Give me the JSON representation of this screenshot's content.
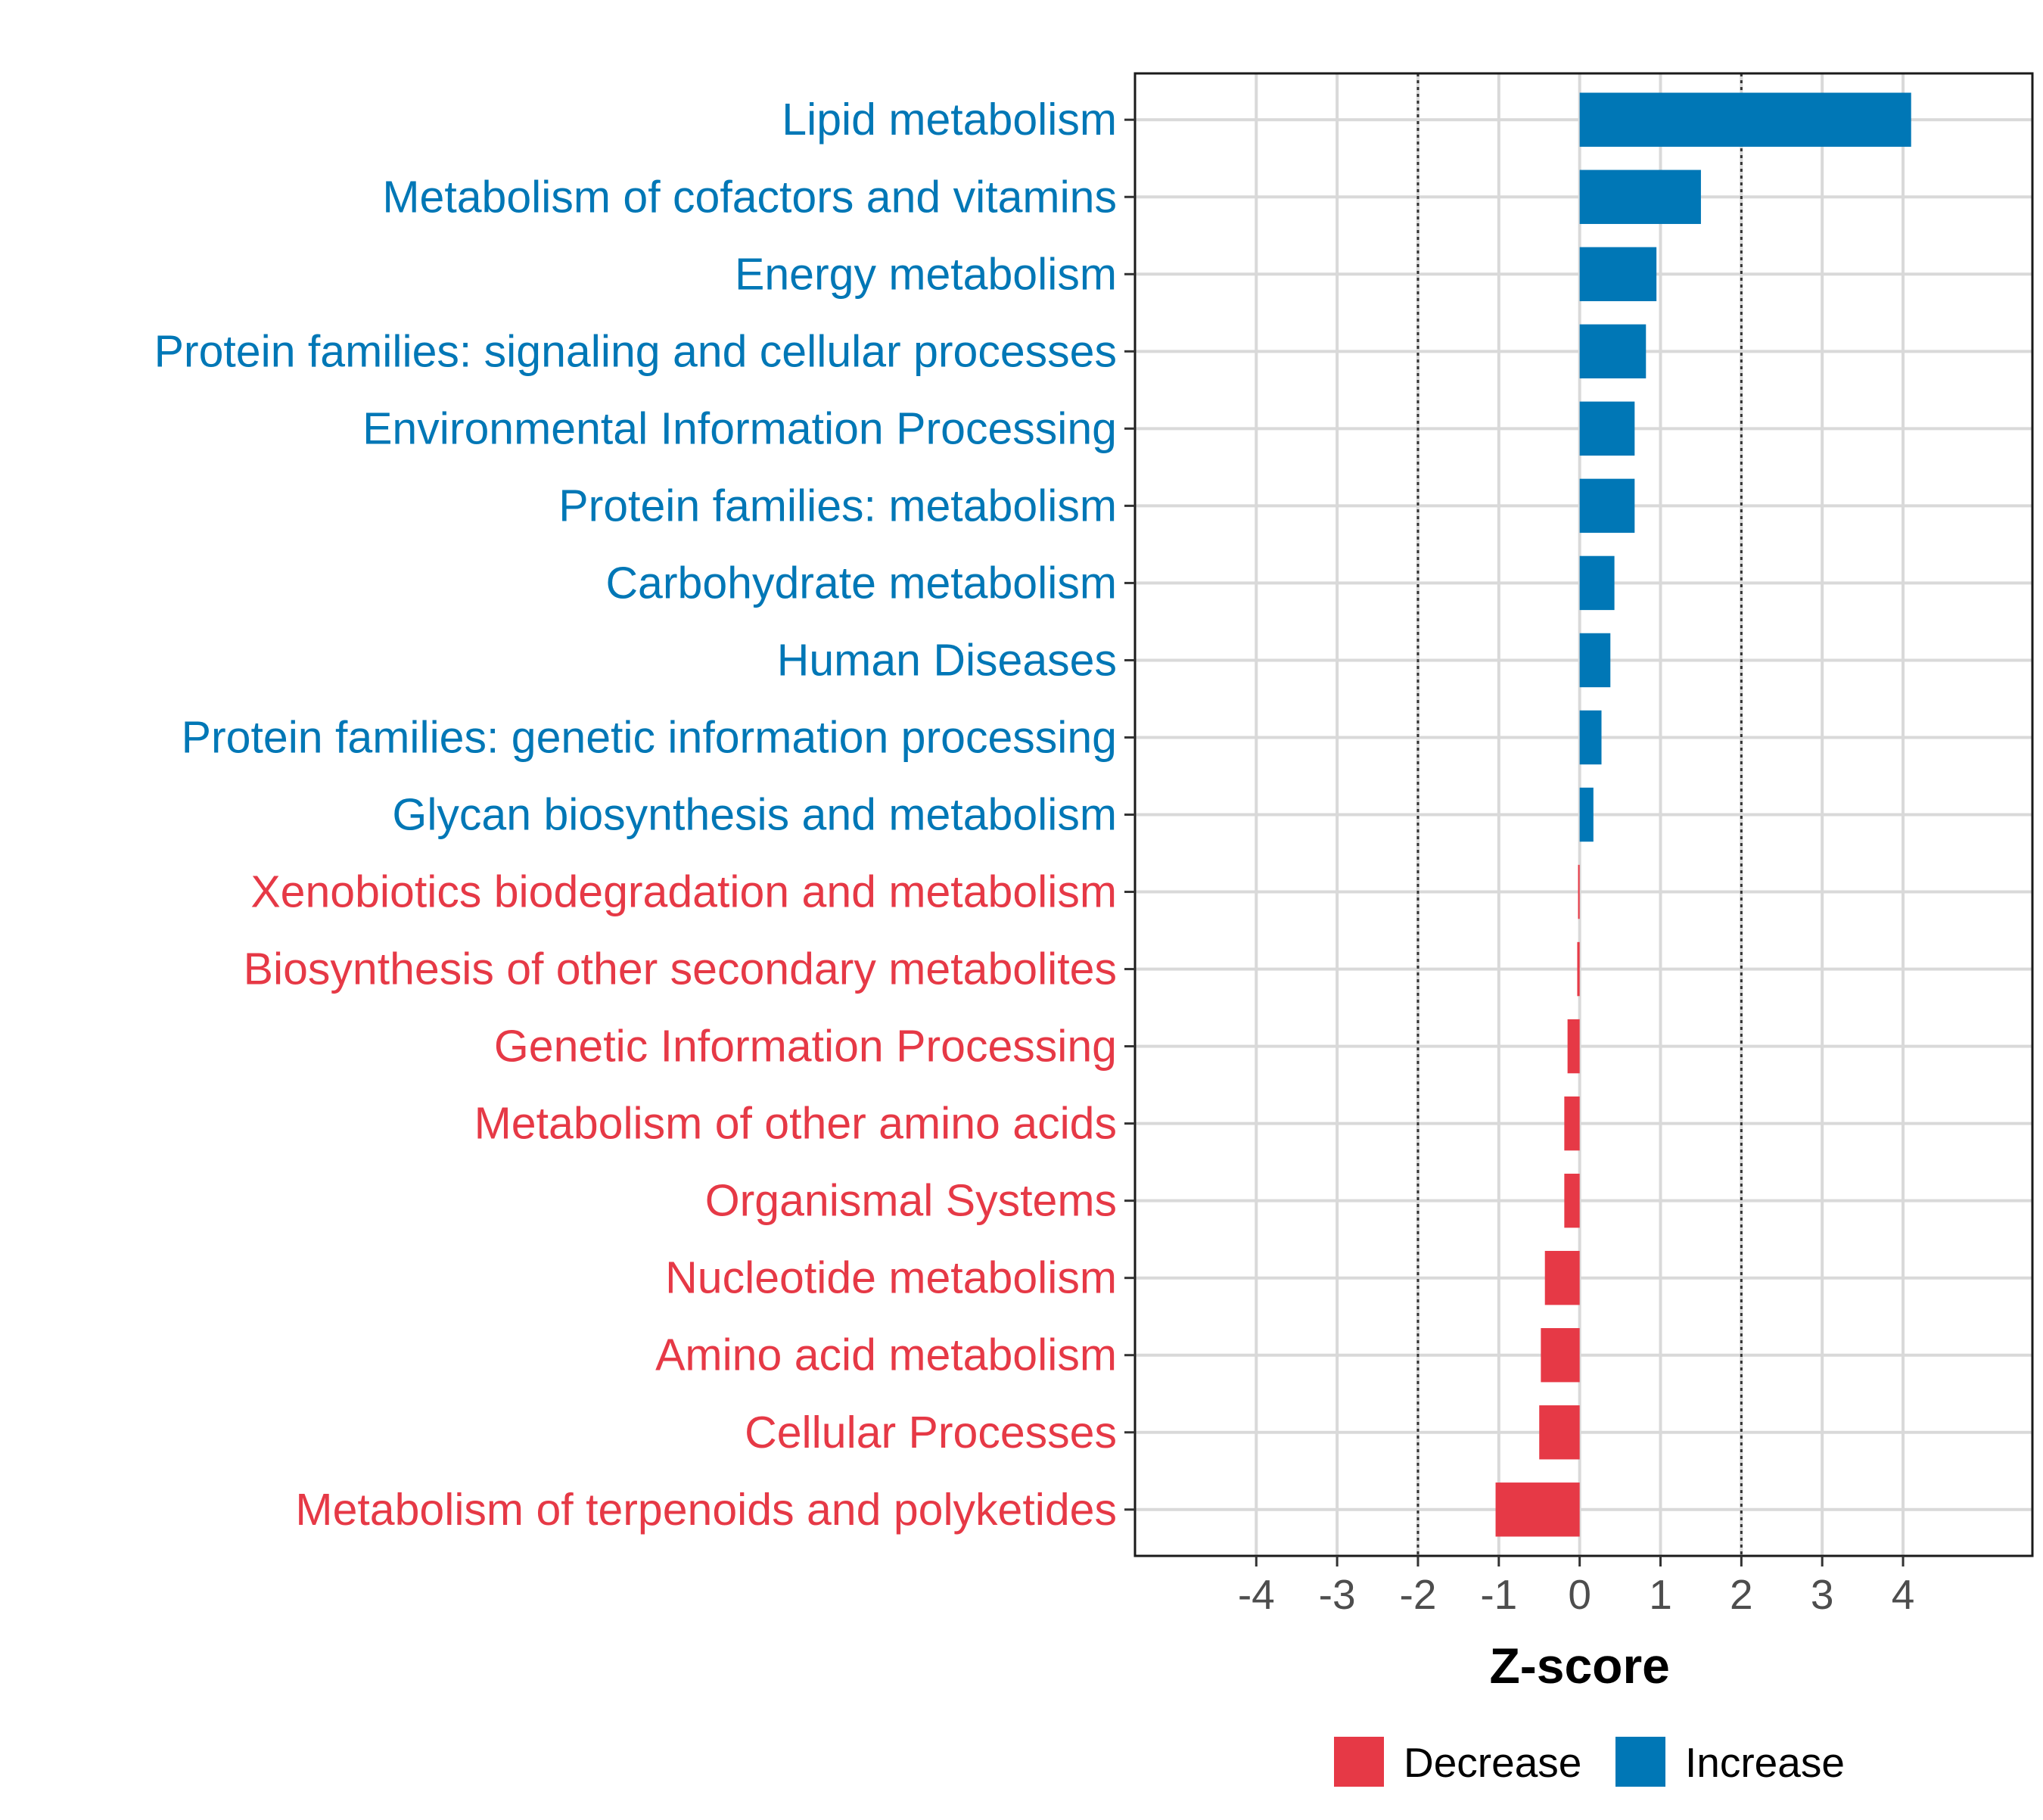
{
  "chart_data": {
    "type": "bar",
    "orientation": "horizontal",
    "title": "",
    "xlabel": "Z-score",
    "ylabel": "",
    "xlim": [
      -5.5,
      5.6
    ],
    "xticks": [
      -4,
      -3,
      -2,
      -1,
      0,
      1,
      2,
      3,
      4
    ],
    "xtick_labels": [
      "-4",
      "-3",
      "-2",
      "-1",
      "0",
      "1",
      "2",
      "3",
      "4"
    ],
    "reference_lines": [
      -2,
      2
    ],
    "grid": true,
    "categories": [
      "Lipid metabolism",
      "Metabolism of cofactors and vitamins",
      "Energy metabolism",
      "Protein families: signaling and cellular processes",
      "Environmental Information Processing",
      "Protein families: metabolism",
      "Carbohydrate metabolism",
      "Human Diseases",
      "Protein families: genetic information processing",
      "Glycan biosynthesis and metabolism",
      "Xenobiotics biodegradation and metabolism",
      "Biosynthesis of other secondary metabolites",
      "Genetic Information Processing",
      "Metabolism of other amino acids",
      "Organismal Systems",
      "Nucleotide metabolism",
      "Amino acid metabolism",
      "Cellular Processes",
      "Metabolism of terpenoids and polyketides"
    ],
    "values": [
      4.1,
      1.5,
      0.95,
      0.82,
      0.68,
      0.68,
      0.43,
      0.38,
      0.27,
      0.17,
      -0.02,
      -0.03,
      -0.15,
      -0.19,
      -0.19,
      -0.43,
      -0.48,
      -0.5,
      -1.04
    ],
    "groups": [
      "Increase",
      "Increase",
      "Increase",
      "Increase",
      "Increase",
      "Increase",
      "Increase",
      "Increase",
      "Increase",
      "Increase",
      "Decrease",
      "Decrease",
      "Decrease",
      "Decrease",
      "Decrease",
      "Decrease",
      "Decrease",
      "Decrease",
      "Decrease"
    ],
    "legend": {
      "position": "bottom",
      "entries": [
        {
          "label": "Decrease",
          "color": "#e63946"
        },
        {
          "label": "Increase",
          "color": "#0077b6"
        }
      ]
    },
    "colors": {
      "Decrease": "#e63946",
      "Increase": "#0077b6"
    }
  }
}
